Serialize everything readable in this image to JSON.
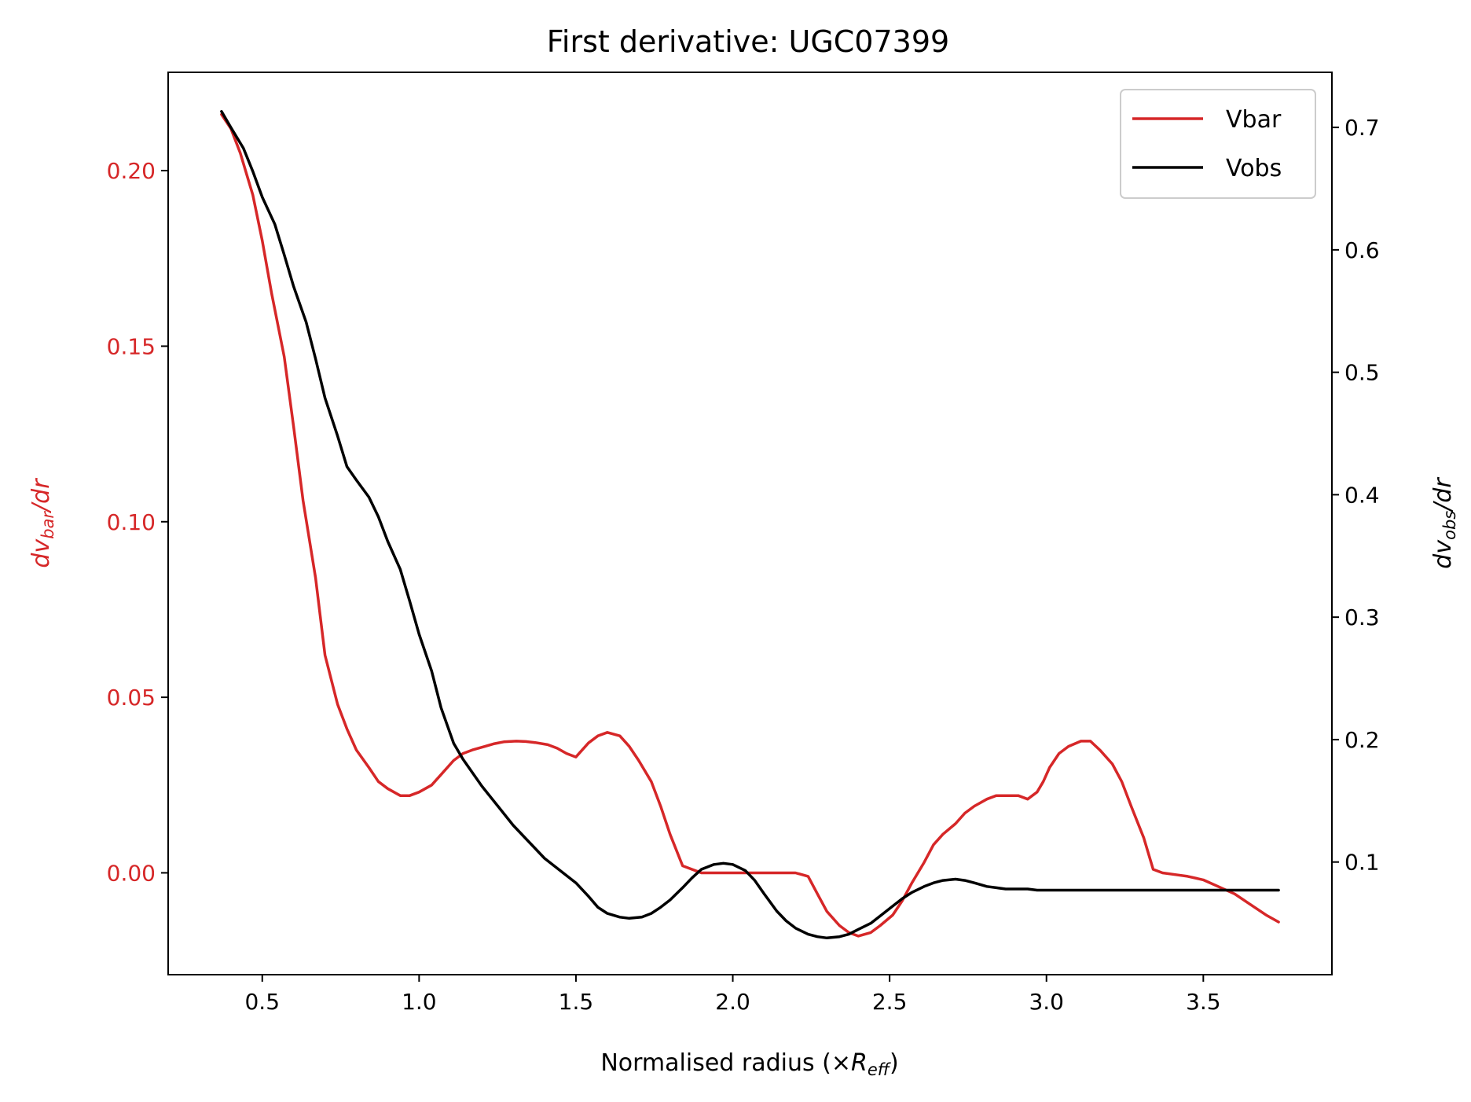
{
  "chart_data": {
    "type": "line",
    "title": "First derivative: UGC07399",
    "xlabel": {
      "main": "Normalised radius (×",
      "var": "R",
      "sub": "eff",
      "close": ")"
    },
    "ylabel_left": {
      "main": "dv",
      "sub": "bar",
      "tail": "/dr"
    },
    "ylabel_right": {
      "main": "dv",
      "sub": "obs",
      "tail": "/dr"
    },
    "xlim": [
      0.2,
      3.91
    ],
    "ylim_left": [
      -0.029,
      0.228
    ],
    "ylim_right": [
      0.008,
      0.745
    ],
    "x_ticks": [
      0.5,
      1.0,
      1.5,
      2.0,
      2.5,
      3.0,
      3.5
    ],
    "x_tick_labels": [
      "0.5",
      "1.0",
      "1.5",
      "2.0",
      "2.5",
      "3.0",
      "3.5"
    ],
    "y_left_ticks": [
      0.0,
      0.05,
      0.1,
      0.15,
      0.2
    ],
    "y_left_tick_labels": [
      "0.00",
      "0.05",
      "0.10",
      "0.15",
      "0.20"
    ],
    "y_right_ticks": [
      0.1,
      0.2,
      0.3,
      0.4,
      0.5,
      0.6,
      0.7
    ],
    "y_right_tick_labels": [
      "0.1",
      "0.2",
      "0.3",
      "0.4",
      "0.5",
      "0.6",
      "0.7"
    ],
    "legend_position": "top-right",
    "grid": false,
    "series": [
      {
        "name": "Vbar",
        "axis": "left",
        "color": "#d62728",
        "x": [
          0.37,
          0.4,
          0.43,
          0.47,
          0.5,
          0.53,
          0.57,
          0.6,
          0.63,
          0.67,
          0.7,
          0.74,
          0.77,
          0.8,
          0.84,
          0.87,
          0.9,
          0.94,
          0.97,
          1.0,
          1.04,
          1.07,
          1.11,
          1.14,
          1.17,
          1.21,
          1.24,
          1.27,
          1.31,
          1.34,
          1.37,
          1.41,
          1.44,
          1.47,
          1.5,
          1.54,
          1.57,
          1.6,
          1.64,
          1.67,
          1.7,
          1.74,
          1.77,
          1.8,
          1.84,
          1.87,
          1.9,
          1.94,
          2.0,
          2.1,
          2.2,
          2.24,
          2.27,
          2.3,
          2.34,
          2.37,
          2.4,
          2.44,
          2.47,
          2.51,
          2.54,
          2.57,
          2.61,
          2.64,
          2.67,
          2.71,
          2.74,
          2.77,
          2.81,
          2.84,
          2.87,
          2.91,
          2.94,
          2.97,
          2.99,
          3.01,
          3.04,
          3.07,
          3.11,
          3.14,
          3.17,
          3.21,
          3.24,
          3.27,
          3.31,
          3.34,
          3.37,
          3.41,
          3.45,
          3.5,
          3.55,
          3.6,
          3.65,
          3.7,
          3.74
        ],
        "y": [
          0.216,
          0.212,
          0.205,
          0.193,
          0.18,
          0.165,
          0.147,
          0.127,
          0.106,
          0.084,
          0.062,
          0.048,
          0.041,
          0.035,
          0.03,
          0.026,
          0.024,
          0.022,
          0.022,
          0.023,
          0.025,
          0.028,
          0.032,
          0.034,
          0.035,
          0.036,
          0.0368,
          0.0373,
          0.0375,
          0.0374,
          0.0371,
          0.0365,
          0.0355,
          0.034,
          0.033,
          0.037,
          0.039,
          0.04,
          0.039,
          0.036,
          0.032,
          0.026,
          0.019,
          0.011,
          0.002,
          0.001,
          0.0,
          0.0,
          0.0,
          0.0,
          0.0,
          -0.001,
          -0.006,
          -0.011,
          -0.015,
          -0.017,
          -0.018,
          -0.017,
          -0.015,
          -0.012,
          -0.008,
          -0.003,
          0.003,
          0.008,
          0.011,
          0.014,
          0.017,
          0.019,
          0.021,
          0.022,
          0.022,
          0.022,
          0.021,
          0.023,
          0.026,
          0.03,
          0.034,
          0.036,
          0.0375,
          0.0375,
          0.035,
          0.031,
          0.026,
          0.019,
          0.01,
          0.001,
          0.0,
          -0.0005,
          -0.001,
          -0.002,
          -0.004,
          -0.006,
          -0.009,
          -0.012,
          -0.014
        ]
      },
      {
        "name": "Vobs",
        "axis": "right",
        "color": "#000000",
        "x": [
          0.37,
          0.4,
          0.44,
          0.47,
          0.5,
          0.54,
          0.57,
          0.6,
          0.64,
          0.67,
          0.7,
          0.74,
          0.77,
          0.8,
          0.84,
          0.87,
          0.9,
          0.94,
          0.97,
          1.0,
          1.04,
          1.07,
          1.11,
          1.14,
          1.2,
          1.3,
          1.4,
          1.5,
          1.54,
          1.57,
          1.6,
          1.64,
          1.67,
          1.71,
          1.74,
          1.77,
          1.8,
          1.84,
          1.87,
          1.9,
          1.94,
          1.97,
          2.0,
          2.04,
          2.07,
          2.1,
          2.14,
          2.17,
          2.2,
          2.24,
          2.27,
          2.3,
          2.34,
          2.37,
          2.4,
          2.44,
          2.47,
          2.51,
          2.54,
          2.57,
          2.61,
          2.64,
          2.67,
          2.71,
          2.74,
          2.77,
          2.81,
          2.84,
          2.87,
          2.91,
          2.94,
          2.97,
          3.0,
          3.1,
          3.2,
          3.3,
          3.4,
          3.5,
          3.6,
          3.74
        ],
        "y": [
          0.713,
          0.7,
          0.683,
          0.664,
          0.643,
          0.621,
          0.596,
          0.57,
          0.541,
          0.511,
          0.479,
          0.448,
          0.423,
          0.412,
          0.398,
          0.382,
          0.362,
          0.339,
          0.313,
          0.286,
          0.256,
          0.226,
          0.197,
          0.184,
          0.162,
          0.13,
          0.103,
          0.083,
          0.072,
          0.063,
          0.058,
          0.055,
          0.054,
          0.055,
          0.058,
          0.063,
          0.069,
          0.079,
          0.087,
          0.094,
          0.098,
          0.099,
          0.098,
          0.093,
          0.085,
          0.074,
          0.06,
          0.052,
          0.046,
          0.041,
          0.039,
          0.038,
          0.039,
          0.041,
          0.045,
          0.05,
          0.056,
          0.064,
          0.07,
          0.075,
          0.08,
          0.083,
          0.085,
          0.086,
          0.085,
          0.083,
          0.08,
          0.079,
          0.078,
          0.078,
          0.078,
          0.077,
          0.077,
          0.077,
          0.077,
          0.077,
          0.077,
          0.077,
          0.077,
          0.077
        ]
      }
    ]
  },
  "colors": {
    "vbar": "#d62728",
    "vobs": "#000000"
  }
}
